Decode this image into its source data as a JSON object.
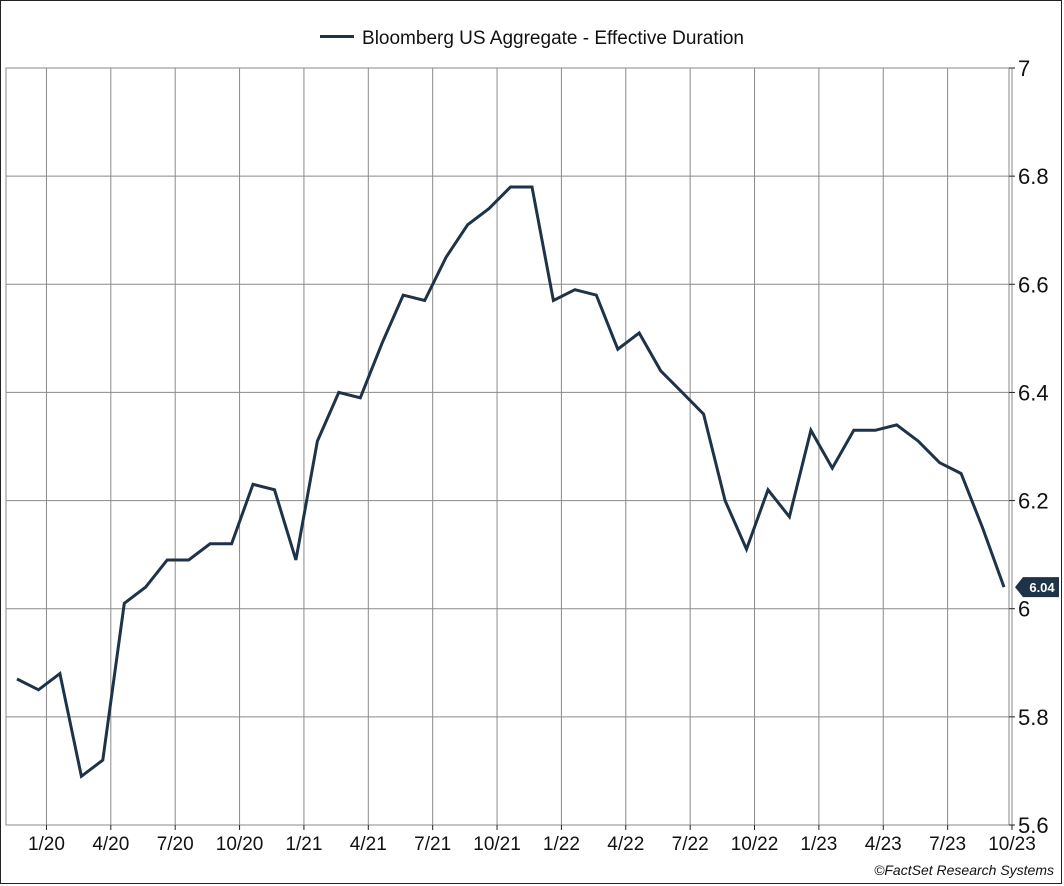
{
  "legend": {
    "label": "Bloomberg US Aggregate - Effective Duration"
  },
  "credit": "©FactSet Research Systems",
  "colors": {
    "line": "#1e3348",
    "grid": "#8a8a8a",
    "badge": "#1e3348"
  },
  "chart_data": {
    "type": "line",
    "title": "",
    "xlabel": "",
    "ylabel": "",
    "ylim": [
      5.6,
      7
    ],
    "yticks": [
      "7",
      "6.8",
      "6.6",
      "6.4",
      "6.2",
      "6",
      "5.8",
      "5.6"
    ],
    "xticks": [
      "1/20",
      "4/20",
      "7/20",
      "10/20",
      "1/21",
      "4/21",
      "7/21",
      "10/21",
      "1/22",
      "4/22",
      "7/22",
      "10/22",
      "1/23",
      "4/23",
      "7/23",
      "10/23"
    ],
    "grid": true,
    "legend_position": "top-center",
    "last_value_label": "6.04",
    "series": [
      {
        "name": "Bloomberg US Aggregate - Effective Duration",
        "x": [
          "12/19",
          "1/20",
          "2/20",
          "3/20",
          "4/20",
          "5/20",
          "6/20",
          "7/20",
          "8/20",
          "9/20",
          "10/20",
          "11/20",
          "12/20",
          "1/21",
          "2/21",
          "3/21",
          "4/21",
          "5/21",
          "6/21",
          "7/21",
          "8/21",
          "9/21",
          "10/21",
          "11/21",
          "12/21",
          "1/22",
          "2/22",
          "3/22",
          "4/22",
          "5/22",
          "6/22",
          "7/22",
          "8/22",
          "9/22",
          "10/22",
          "11/22",
          "12/22",
          "1/23",
          "2/23",
          "3/23",
          "4/23",
          "5/23",
          "6/23",
          "7/23",
          "8/23",
          "9/23",
          "10/23"
        ],
        "values": [
          5.87,
          5.85,
          5.88,
          5.69,
          5.72,
          6.01,
          6.04,
          6.09,
          6.09,
          6.12,
          6.12,
          6.23,
          6.22,
          6.09,
          6.31,
          6.4,
          6.39,
          6.49,
          6.58,
          6.57,
          6.65,
          6.71,
          6.74,
          6.78,
          6.78,
          6.57,
          6.59,
          6.58,
          6.48,
          6.51,
          6.44,
          6.4,
          6.36,
          6.2,
          6.11,
          6.22,
          6.17,
          6.33,
          6.26,
          6.33,
          6.33,
          6.34,
          6.31,
          6.27,
          6.25,
          6.15,
          6.04
        ]
      }
    ]
  }
}
